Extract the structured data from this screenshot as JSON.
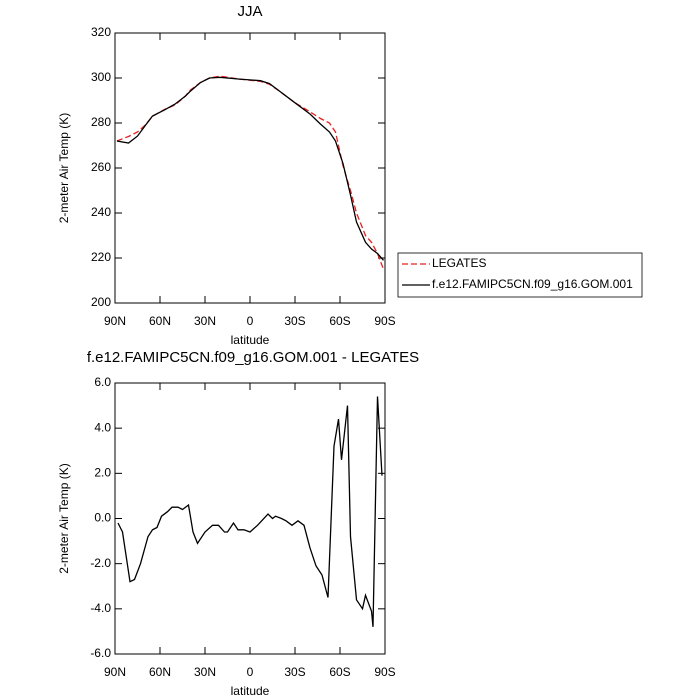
{
  "chart_data": [
    {
      "type": "line",
      "title": "JJA",
      "x_label": "latitude",
      "y_label": "2-meter Air Temp (K)",
      "x": [
        88.7,
        81,
        75,
        70,
        65,
        57,
        50,
        43,
        40,
        33,
        27,
        20,
        7,
        -7,
        -13,
        -20,
        -30,
        -40,
        -47,
        -53,
        -57,
        -62,
        -67,
        -71,
        -77,
        -81,
        -85,
        -89
      ],
      "series": [
        {
          "name": "LEGATES",
          "color": "#e8201f",
          "line_style": "dashed",
          "values": [
            272,
            274,
            276,
            279,
            283,
            286,
            288,
            292,
            294.5,
            298,
            300,
            300.8,
            299.5,
            298.5,
            297.2,
            294,
            289,
            285,
            282,
            280,
            276,
            261,
            250,
            240,
            230,
            227,
            222,
            215
          ]
        },
        {
          "name": "f.e12.FAMIPC5CN.f09_g16.GOM.001",
          "color": "#000000",
          "line_style": "solid",
          "values": [
            272,
            271.1,
            274.2,
            278.7,
            283.1,
            285.8,
            288.4,
            292,
            294,
            298,
            300,
            300.3,
            299.5,
            298.8,
            297.5,
            294,
            289,
            284,
            279.5,
            276,
            272,
            262,
            248,
            236,
            227,
            224,
            222,
            219
          ]
        }
      ],
      "xlim": [
        90,
        -90
      ],
      "xticks": [
        {
          "value": 90,
          "label": "90N"
        },
        {
          "value": 60,
          "label": "60N"
        },
        {
          "value": 30,
          "label": "30N"
        },
        0,
        {
          "value": -30,
          "label": "30S"
        },
        {
          "value": -60,
          "label": "60S"
        },
        {
          "value": -90,
          "label": "90S"
        }
      ],
      "ylim": [
        200,
        320
      ],
      "yticks": [
        200,
        220,
        240,
        260,
        280,
        300,
        320
      ],
      "legend": "right"
    },
    {
      "type": "line",
      "title": "f.e12.FAMIPC5CN.f09_g16.GOM.001 - LEGATES",
      "x_label": "latitude",
      "y_label": "2-meter Air Temp (K)",
      "x": [
        88,
        85,
        80,
        77,
        73,
        68,
        65,
        62,
        59,
        55,
        52,
        48,
        45,
        41,
        38,
        35,
        30,
        25,
        21,
        17,
        15,
        11,
        8,
        4,
        0,
        -5,
        -12,
        -15,
        -17,
        -21,
        -24,
        -28,
        -32,
        -36,
        -40,
        -44,
        -48,
        -52,
        -56,
        -59,
        -61,
        -65,
        -67,
        -71,
        -75,
        -77,
        -81,
        -82,
        -85,
        -88
      ],
      "values": [
        -0.2,
        -0.6,
        -2.8,
        -2.7,
        -2.0,
        -0.8,
        -0.5,
        -0.4,
        0.1,
        0.3,
        0.5,
        0.5,
        0.4,
        0.6,
        -0.6,
        -1.1,
        -0.6,
        -0.3,
        -0.3,
        -0.6,
        -0.6,
        -0.2,
        -0.5,
        -0.5,
        -0.6,
        -0.3,
        0.2,
        0.0,
        0.1,
        0.0,
        -0.1,
        -0.3,
        -0.1,
        -0.3,
        -1.3,
        -2.1,
        -2.5,
        -3.5,
        3.2,
        4.4,
        2.6,
        5.0,
        -0.8,
        -3.6,
        -4.0,
        -3.4,
        -4.1,
        -4.8,
        5.4,
        1.9
      ],
      "color": "#000000",
      "xlim": [
        90,
        -90
      ],
      "xticks": [
        {
          "value": 90,
          "label": "90N"
        },
        {
          "value": 60,
          "label": "60N"
        },
        {
          "value": 30,
          "label": "30N"
        },
        0,
        {
          "value": -30,
          "label": "30S"
        },
        {
          "value": -60,
          "label": "60S"
        },
        {
          "value": -90,
          "label": "90S"
        }
      ],
      "ylim": [
        -6,
        6
      ],
      "yticks": [
        {
          "value": -6,
          "label": "-6.0"
        },
        {
          "value": -4,
          "label": "-4.0"
        },
        {
          "value": -2,
          "label": "-2.0"
        },
        {
          "value": 0,
          "label": "0.0"
        },
        {
          "value": 2,
          "label": "2.0"
        },
        {
          "value": 4,
          "label": "4.0"
        },
        {
          "value": 6,
          "label": "6.0"
        }
      ]
    }
  ]
}
